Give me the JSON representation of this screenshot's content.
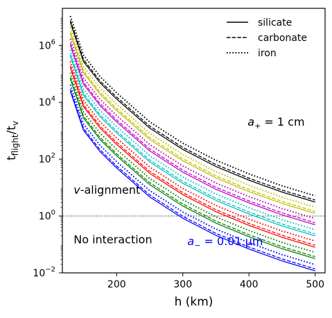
{
  "chart_data": {
    "type": "line",
    "title": "",
    "xlabel": "h (km)",
    "ylabel_main": "t",
    "ylabel_num_sub": "flight",
    "ylabel_sep": "/t",
    "ylabel_den_sub": "v",
    "x_scale": "linear",
    "y_scale": "log",
    "xlim": [
      118,
      515
    ],
    "ylim": [
      0.01,
      20000000
    ],
    "x_ticks": [
      200,
      300,
      400,
      500
    ],
    "x_tick_labels": [
      "200",
      "300",
      "400",
      "500"
    ],
    "y_ticks": [
      0.01,
      1,
      100,
      10000,
      1000000
    ],
    "y_tick_labels": [
      {
        "base": "10",
        "exp": "−2"
      },
      {
        "base": "10",
        "exp": "0"
      },
      {
        "base": "10",
        "exp": "2"
      },
      {
        "base": "10",
        "exp": "4"
      },
      {
        "base": "10",
        "exp": "6"
      }
    ],
    "grid": false,
    "legend": {
      "placement": "top-right",
      "entries": [
        {
          "label": "silicate",
          "linestyle": "solid"
        },
        {
          "label": "carbonate",
          "linestyle": "dashed"
        },
        {
          "label": "iron",
          "linestyle": "dotted"
        }
      ]
    },
    "reference_line": {
      "y": 1,
      "style": "dashed",
      "color": "#555555"
    },
    "annotations": [
      {
        "id": "top",
        "type": "math",
        "base": "a",
        "sub": "+",
        "rest": " = 1 cm",
        "color": "#000000",
        "x": 398,
        "y": 1500
      },
      {
        "id": "valign",
        "type": "italic-prefix",
        "italic": "v",
        "rest": "-alignment",
        "color": "#000000",
        "x": 135,
        "y": 6
      },
      {
        "id": "noint",
        "type": "plain",
        "text": "No interaction",
        "color": "#000000",
        "x": 135,
        "y": 0.11
      },
      {
        "id": "bottom",
        "type": "math",
        "base": "a",
        "sub": "−",
        "rest": " = 0.01 μm",
        "color": "#0000ff",
        "x": 307,
        "y": 0.095
      }
    ],
    "x": [
      130,
      150,
      175,
      200,
      250,
      300,
      350,
      400,
      450,
      500
    ],
    "shape": [
      0,
      -1.38,
      -2.13,
      -2.7,
      -3.72,
      -4.47,
      -5.07,
      -5.55,
      -5.97,
      -6.32
    ],
    "composition_offsets": {
      "silicate": 0,
      "carbonate": 0.07,
      "iron": 0.22
    },
    "composition_styles": {
      "silicate": "solid",
      "carbonate": "dashed",
      "iron": "dotted"
    },
    "size_groups": [
      {
        "color": "#000000",
        "start": 6.81
      },
      {
        "color": "#bfbf00",
        "start": 6.41
      },
      {
        "color": "#bf00bf",
        "start": 6.01
      },
      {
        "color": "#00bfbf",
        "start": 5.62
      },
      {
        "color": "#ff0000",
        "start": 5.22
      },
      {
        "color": "#008000",
        "start": 4.82
      },
      {
        "color": "#0000ff",
        "start": 4.39
      }
    ]
  }
}
